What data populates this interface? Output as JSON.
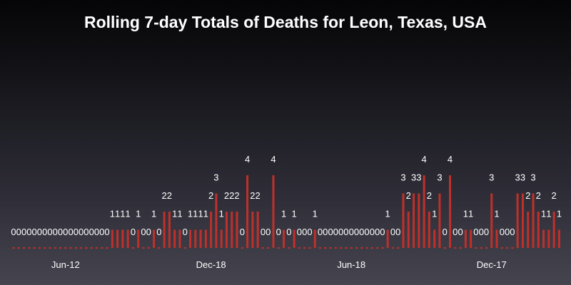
{
  "chart_data": {
    "type": "bar",
    "title": "Rolling 7-day Totals of Deaths for Leon, Texas, USA",
    "xlabel": "",
    "ylabel": "",
    "ylim": [
      0,
      4
    ],
    "grid": false,
    "bar_color": "#c0302a",
    "zero_marker_color": "#c0302a",
    "label_color": "#ffffff",
    "x_tick_labels": [
      {
        "index": 10,
        "label": "Jun-12"
      },
      {
        "index": 38,
        "label": "Dec-18"
      },
      {
        "index": 65,
        "label": "Jun-18"
      },
      {
        "index": 92,
        "label": "Dec-17"
      }
    ],
    "values": [
      0,
      0,
      0,
      0,
      0,
      0,
      0,
      0,
      0,
      0,
      0,
      0,
      0,
      0,
      0,
      0,
      0,
      0,
      0,
      1,
      1,
      1,
      1,
      0,
      1,
      0,
      0,
      1,
      0,
      2,
      2,
      1,
      1,
      0,
      1,
      1,
      1,
      1,
      2,
      3,
      1,
      2,
      2,
      2,
      0,
      4,
      2,
      2,
      0,
      0,
      4,
      0,
      1,
      0,
      1,
      0,
      0,
      0,
      1,
      0,
      0,
      0,
      0,
      0,
      0,
      0,
      0,
      0,
      0,
      0,
      0,
      0,
      1,
      0,
      0,
      3,
      2,
      3,
      3,
      4,
      2,
      1,
      3,
      0,
      4,
      0,
      0,
      1,
      1,
      0,
      0,
      0,
      3,
      1,
      0,
      0,
      0,
      3,
      3,
      2,
      3,
      2,
      1,
      1,
      2,
      1
    ]
  }
}
